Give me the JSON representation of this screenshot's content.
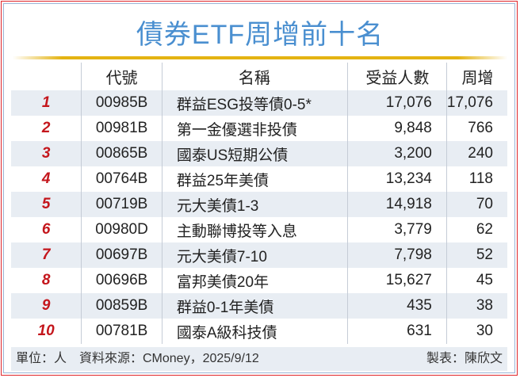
{
  "title": "債券ETF周增前十名",
  "colors": {
    "title": "#4a8fd0",
    "rank": "#c4161c",
    "accent_line": "#e4b312",
    "border": "#e0262b",
    "row_shade": "#e8edf3"
  },
  "headers": {
    "rank": "",
    "code": "代號",
    "name": "名稱",
    "holders": "受益人數",
    "weekly": "周增"
  },
  "rows": [
    {
      "rank": "1",
      "code": "00985B",
      "name": "群益ESG投等債0-5*",
      "holders": "17,076",
      "weekly": "17,076"
    },
    {
      "rank": "2",
      "code": "00981B",
      "name": "第一金優選非投債",
      "holders": "9,848",
      "weekly": "766"
    },
    {
      "rank": "3",
      "code": "00865B",
      "name": "國泰US短期公債",
      "holders": "3,200",
      "weekly": "240"
    },
    {
      "rank": "4",
      "code": "00764B",
      "name": "群益25年美債",
      "holders": "13,234",
      "weekly": "118"
    },
    {
      "rank": "5",
      "code": "00719B",
      "name": "元大美債1-3",
      "holders": "14,918",
      "weekly": "70"
    },
    {
      "rank": "6",
      "code": "00980D",
      "name": "主動聯博投等入息",
      "holders": "3,779",
      "weekly": "62"
    },
    {
      "rank": "7",
      "code": "00697B",
      "name": "元大美債7-10",
      "holders": "7,798",
      "weekly": "52"
    },
    {
      "rank": "8",
      "code": "00696B",
      "name": "富邦美債20年",
      "holders": "15,627",
      "weekly": "45"
    },
    {
      "rank": "9",
      "code": "00859B",
      "name": "群益0-1年美債",
      "holders": "435",
      "weekly": "38"
    },
    {
      "rank": "10",
      "code": "00781B",
      "name": "國泰A級科技債",
      "holders": "631",
      "weekly": "30"
    }
  ],
  "footer": {
    "source": "單位：人　資料來源：CMoney，2025/9/12",
    "author": "製表：陳欣文"
  }
}
